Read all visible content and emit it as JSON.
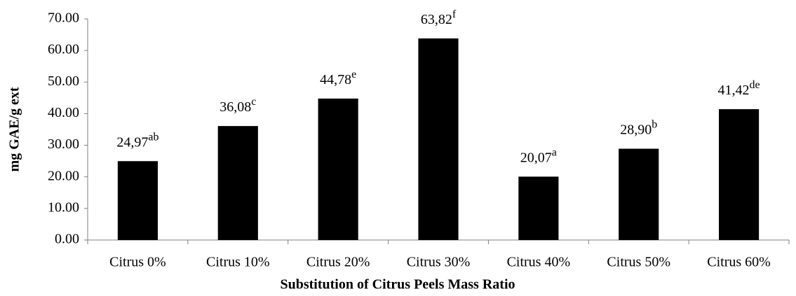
{
  "chart_data": {
    "type": "bar",
    "xlabel": "Substitution of Citrus Peels Mass Ratio",
    "ylabel": "mg GAE/g ext",
    "categories": [
      "Citrus 0%",
      "Citrus 10%",
      "Citrus 20%",
      "Citrus 30%",
      "Citrus 40%",
      "Citrus 50%",
      "Citrus 60%"
    ],
    "values": [
      24.97,
      36.08,
      44.78,
      63.82,
      20.07,
      28.9,
      41.42
    ],
    "value_labels": [
      "24,97",
      "36,08",
      "44,78",
      "63,82",
      "20,07",
      "28,90",
      "41,42"
    ],
    "value_label_letters": [
      "ab",
      "c",
      "e",
      "f",
      "a",
      "b",
      "de"
    ],
    "color": "#000000",
    "ylim": [
      0,
      70
    ],
    "yticks": [
      {
        "value": 0,
        "label": "0.00"
      },
      {
        "value": 10,
        "label": "10.00"
      },
      {
        "value": 20,
        "label": "20.00"
      },
      {
        "value": 30,
        "label": "30.00"
      },
      {
        "value": 40,
        "label": "40.00"
      },
      {
        "value": 50,
        "label": "50.00"
      },
      {
        "value": 60,
        "label": "60.00"
      },
      {
        "value": 70,
        "label": "70.00"
      }
    ],
    "grid": false
  }
}
